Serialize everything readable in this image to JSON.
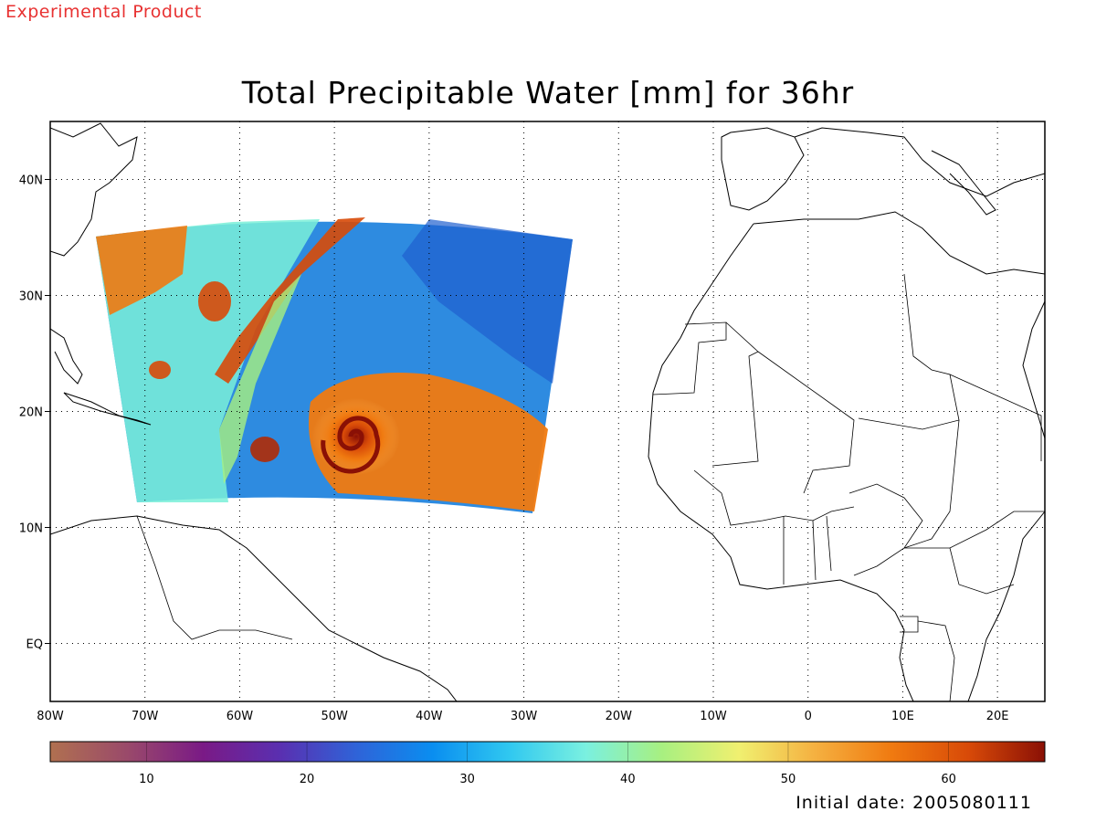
{
  "header": {
    "product_note": "Experimental Product",
    "title": "Total Precipitable Water [mm] for 36hr",
    "initial_date": "Initial date: 2005080111"
  },
  "map": {
    "lon_range": [
      -80,
      25
    ],
    "lat_range": [
      -5,
      45
    ],
    "lon_ticks": [
      {
        "value": -80,
        "label": "80W"
      },
      {
        "value": -70,
        "label": "70W"
      },
      {
        "value": -60,
        "label": "60W"
      },
      {
        "value": -50,
        "label": "50W"
      },
      {
        "value": -40,
        "label": "40W"
      },
      {
        "value": -30,
        "label": "30W"
      },
      {
        "value": -20,
        "label": "20W"
      },
      {
        "value": -10,
        "label": "10W"
      },
      {
        "value": 0,
        "label": "0"
      },
      {
        "value": 10,
        "label": "10E"
      },
      {
        "value": 20,
        "label": "20E"
      }
    ],
    "lat_ticks": [
      {
        "value": 40,
        "label": "40N"
      },
      {
        "value": 30,
        "label": "30N"
      },
      {
        "value": 20,
        "label": "20N"
      },
      {
        "value": 10,
        "label": "10N"
      },
      {
        "value": 0,
        "label": "EQ"
      }
    ],
    "grid": "dotted",
    "field_domain": {
      "west": -75,
      "east": -25,
      "north": 37,
      "south": 11
    },
    "hurricane_center": {
      "lon": -48,
      "lat": 18
    }
  },
  "colorbar": {
    "range": [
      4,
      66
    ],
    "ticks": [
      10,
      20,
      30,
      40,
      50,
      60
    ],
    "colors": [
      "#b07050",
      "#9a4a6a",
      "#7a1a86",
      "#5a2fb0",
      "#2f63d8",
      "#0a8ef0",
      "#30c8f0",
      "#7af0e0",
      "#a8f080",
      "#f0f070",
      "#f5b040",
      "#f07a10",
      "#d84a08",
      "#8a1005"
    ]
  }
}
